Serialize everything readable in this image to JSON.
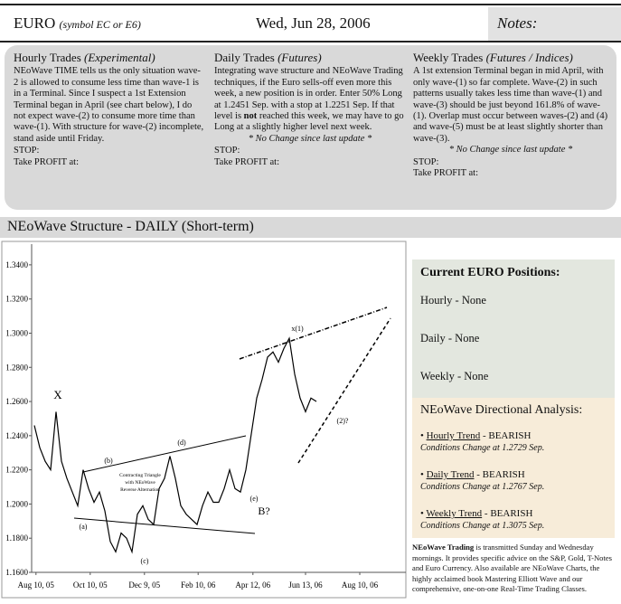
{
  "header": {
    "symbol": "EURO",
    "symbol_note": "(symbol EC or E6)",
    "date": "Wed, Jun 28, 2006",
    "notes": "Notes:"
  },
  "trades": [
    {
      "title": "Hourly Trades",
      "qualifier": "(Experimental)",
      "body": [
        "NEoWave TIME tells us the only situation wave-2 is allowed to consume less time than wave-1 is in a Terminal. Since I suspect a 1st Extension Terminal began in April (see chart below), I do not expect wave-(2) to consume more time than wave-(1). With structure for wave-(2) incomplete, stand aside until Friday."
      ],
      "stop": "STOP:",
      "take_profit": "Take PROFIT at:"
    },
    {
      "title": "Daily Trades",
      "qualifier": "(Futures)",
      "body": [
        "Integrating wave structure and NEoWave Trading techniques, if the Euro sells-off even more this week, a new position is in order. Enter 50% Long at 1.2451 Sep. with a stop at 1.2251 Sep. If that level is ",
        "not",
        " reached this week, we may have to go Long at a slightly higher level next week."
      ],
      "note": "* No Change since last update *",
      "stop": "STOP:",
      "take_profit": "Take PROFIT at:"
    },
    {
      "title": "Weekly Trades",
      "qualifier": "(Futures / Indices)",
      "body": [
        "A 1st extension Terminal began in mid April, with only wave-(1) so far complete. Wave-(2) in such patterns usually takes less time than wave-(1) and wave-(3) should be just beyond 161.8% of wave-(1). Overlap must occur between waves-(2) and (4) and wave-(5) must be at least slightly shorter than wave-(3)."
      ],
      "note": "* No Change since last update *",
      "stop": "STOP:",
      "take_profit": "Take PROFIT at:"
    }
  ],
  "structure": {
    "title": "NEoWave Structure - DAILY (Short-term)",
    "chart": {
      "type": "line",
      "color": "#000000",
      "values": [
        1.246,
        1.233,
        1.225,
        1.22,
        1.254,
        1.225,
        1.215,
        1.207,
        1.199,
        1.22,
        1.209,
        1.201,
        1.207,
        1.196,
        1.178,
        1.172,
        1.183,
        1.18,
        1.172,
        1.194,
        1.199,
        1.191,
        1.188,
        1.209,
        1.215,
        1.228,
        1.215,
        1.199,
        1.194,
        1.191,
        1.188,
        1.199,
        1.207,
        1.201,
        1.201,
        1.209,
        1.22,
        1.209,
        1.207,
        1.22,
        1.241,
        1.262,
        1.273,
        1.286,
        1.289,
        1.283,
        1.291,
        1.297,
        1.276,
        1.262,
        1.254,
        1.262,
        1.26
      ],
      "xlim": [
        -0.5,
        68.5
      ],
      "xticks": [
        {
          "value": 0.3,
          "label": "Aug 10, 05"
        },
        {
          "value": 10.3,
          "label": "Oct 10, 05"
        },
        {
          "value": 20.3,
          "label": "Dec 9, 05"
        },
        {
          "value": 30.2,
          "label": "Feb 10, 06"
        },
        {
          "value": 40.3,
          "label": "Apr 12, 06"
        },
        {
          "value": 50,
          "label": "Jun 13, 06"
        },
        {
          "value": 60,
          "label": "Aug 10, 06"
        }
      ],
      "ylim": [
        1.16,
        1.35
      ],
      "yticks": [
        {
          "value": 1.34,
          "label": "1.3400"
        },
        {
          "value": 1.32,
          "label": "1.3200"
        },
        {
          "value": 1.3,
          "label": "1.3000"
        },
        {
          "value": 1.28,
          "label": "1.2800"
        },
        {
          "value": 1.26,
          "label": "1.2600"
        },
        {
          "value": 1.24,
          "label": "1.2400"
        },
        {
          "value": 1.22,
          "label": "1.2200"
        },
        {
          "value": 1.2,
          "label": "1.2000"
        },
        {
          "value": 1.18,
          "label": "1.1800"
        },
        {
          "value": 1.16,
          "label": "1.1600"
        }
      ],
      "annotations": [
        "X",
        "(b)",
        "(a)",
        "(c)",
        "(d)",
        "(e)",
        "B?",
        "x(1)",
        "(2)?",
        [
          "Contracting Triangle",
          "with NEoWave",
          "Reverse Alternation"
        ]
      ]
    }
  },
  "positions": {
    "title": "Current EURO Positions:",
    "items": [
      "Hourly - None",
      "Daily - None",
      "Weekly - None"
    ]
  },
  "analysis": {
    "title": "NEoWave Directional Analysis:",
    "items": [
      {
        "trend": "Hourly Trend",
        "direction": " - BEARISH",
        "condition": "Conditions Change at 1.2729 Sep."
      },
      {
        "trend": "Daily Trend",
        "direction": " - BEARISH",
        "condition": "Conditions Change at 1.2767 Sep."
      },
      {
        "trend": "Weekly Trend",
        "direction": " - BEARISH",
        "condition": "Conditions Change at 1.3075 Sep."
      }
    ]
  },
  "footer": [
    "NEoWave Trading",
    " is transmitted Sunday and Wednesday mornings. It provides specific advice on the S&P, Gold, T-Notes and Euro Currency. Also available are NEoWave Charts, the highly acclaimed book Mastering Elliott Wave and our comprehensive, one-on-one Real-Time Trading Classes."
  ]
}
